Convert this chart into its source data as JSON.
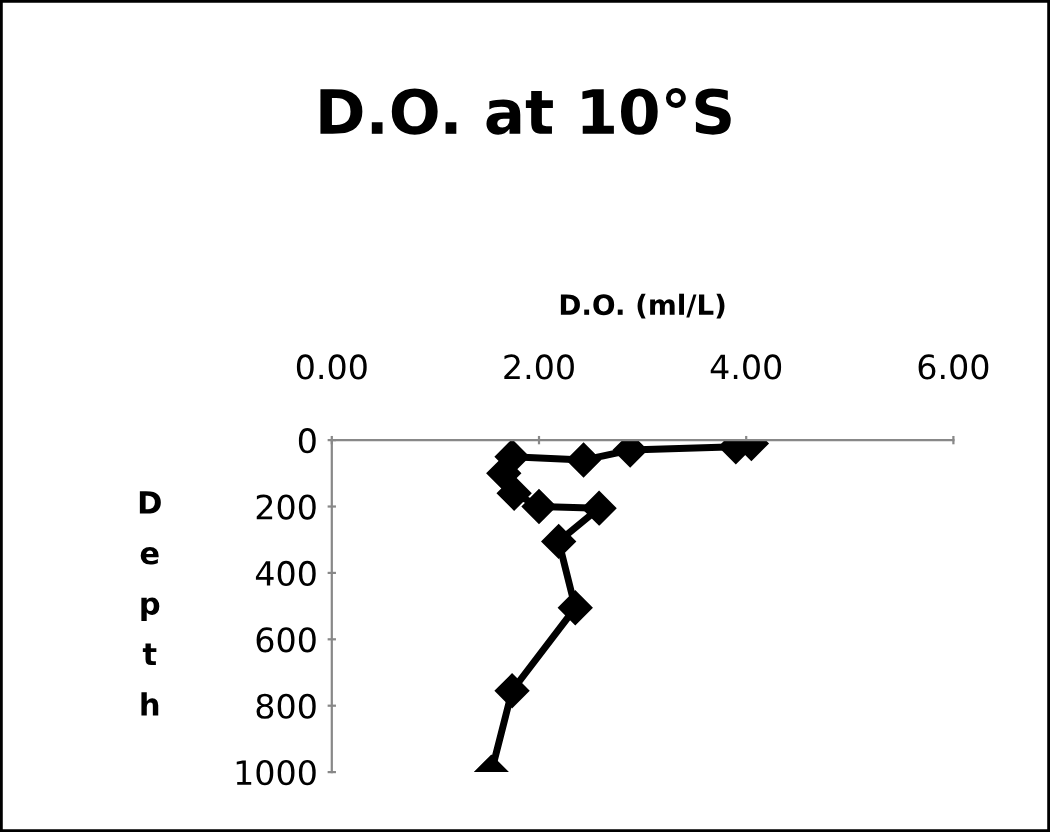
{
  "chart_data": {
    "type": "line",
    "title": "D.O. at 10°S",
    "xlabel": "D.O. (ml/L)",
    "ylabel": "Depth",
    "x": [
      4.05,
      3.9,
      2.88,
      2.43,
      1.74,
      1.66,
      1.76,
      2.0,
      2.58,
      2.19,
      2.35,
      1.74,
      1.54
    ],
    "series": [
      {
        "color": "#000000",
        "values": [
          10,
          20,
          30,
          60,
          50,
          100,
          160,
          200,
          205,
          305,
          505,
          755,
          1000
        ]
      }
    ],
    "xlim": [
      0,
      6
    ],
    "xticks": [
      {
        "value": 0,
        "label": "0.00"
      },
      {
        "value": 2,
        "label": "2.00"
      },
      {
        "value": 4,
        "label": "4.00"
      },
      {
        "value": 6,
        "label": "6.00"
      }
    ],
    "ylim": [
      1000,
      0
    ],
    "yticks": [
      0,
      200,
      400,
      600,
      800,
      1000
    ],
    "marker": "diamond",
    "line_style": "solid",
    "grid": false,
    "legend": false
  }
}
